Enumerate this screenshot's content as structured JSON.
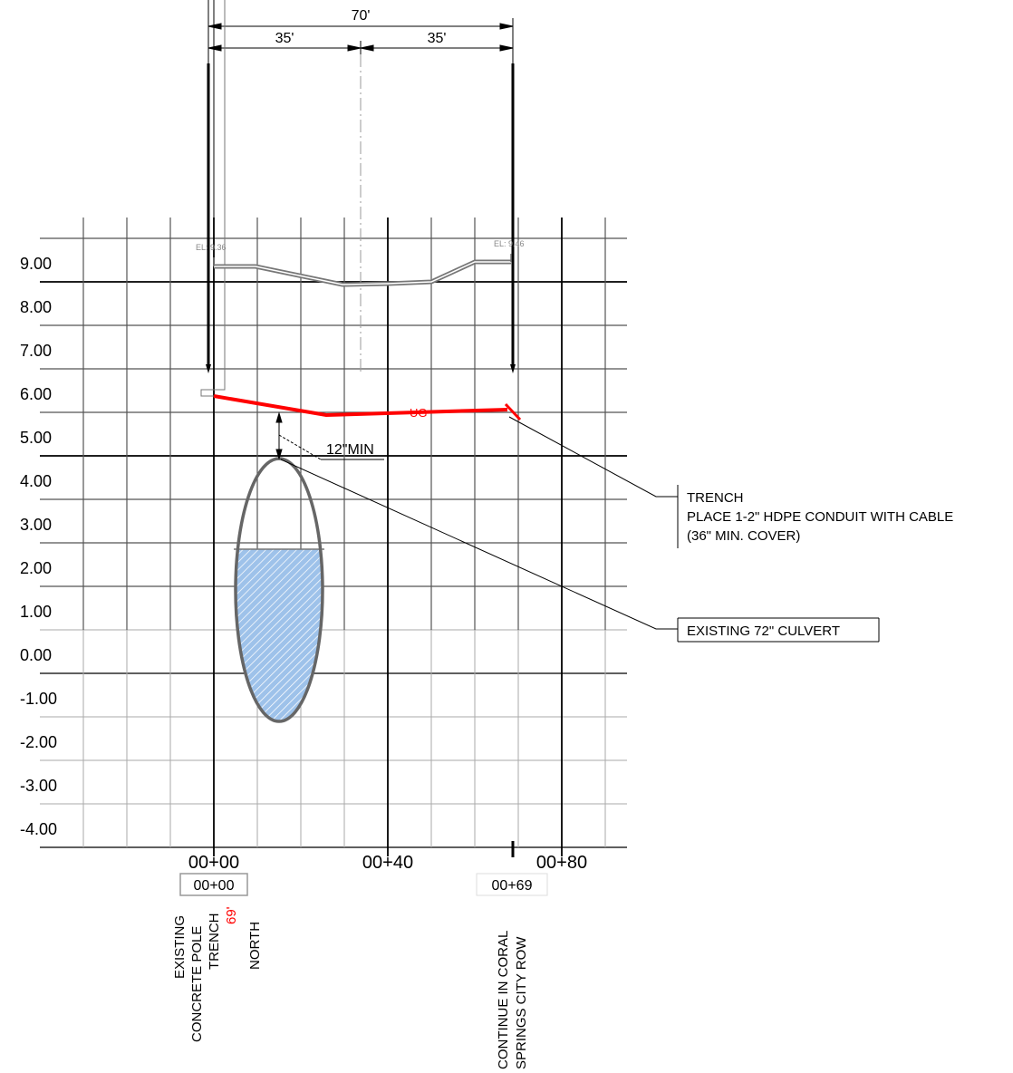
{
  "dimensions": {
    "total": "70'",
    "left": "35'",
    "right": "35'"
  },
  "elevation_labels": [
    "9.00",
    "8.00",
    "7.00",
    "6.00",
    "5.00",
    "4.00",
    "3.00",
    "2.00",
    "1.00",
    "0.00",
    "-1.00",
    "-2.00",
    "-3.00",
    "-4.00"
  ],
  "station_labels": [
    "00+00",
    "00+40",
    "00+80"
  ],
  "station_boxes": {
    "start": "00+00",
    "end": "00+69"
  },
  "spot_elevations": {
    "left": "EL: 9.36",
    "right": "EL: 9.46"
  },
  "conduit_label": "UG",
  "clearance_label": "12\"MIN",
  "callouts": {
    "trench": [
      "TRENCH",
      "PLACE 1-2\" HDPE CONDUIT WITH CABLE",
      "(36\" MIN. COVER)"
    ],
    "culvert": "EXISTING 72\" CULVERT"
  },
  "start_note": {
    "line1": "EXISTING",
    "line2": "CONCRETE POLE",
    "line3": "TRENCH",
    "distance": "69'",
    "line4": "NORTH"
  },
  "end_note": {
    "line1": "CONTINUE IN CORAL",
    "line2": "SPRINGS CITY ROW"
  },
  "colors": {
    "conduit": "#ff0000",
    "water": "#8db4e2",
    "grid_major": "#000000",
    "grid_minor": "#555555",
    "grid_light": "#aaaaaa"
  }
}
